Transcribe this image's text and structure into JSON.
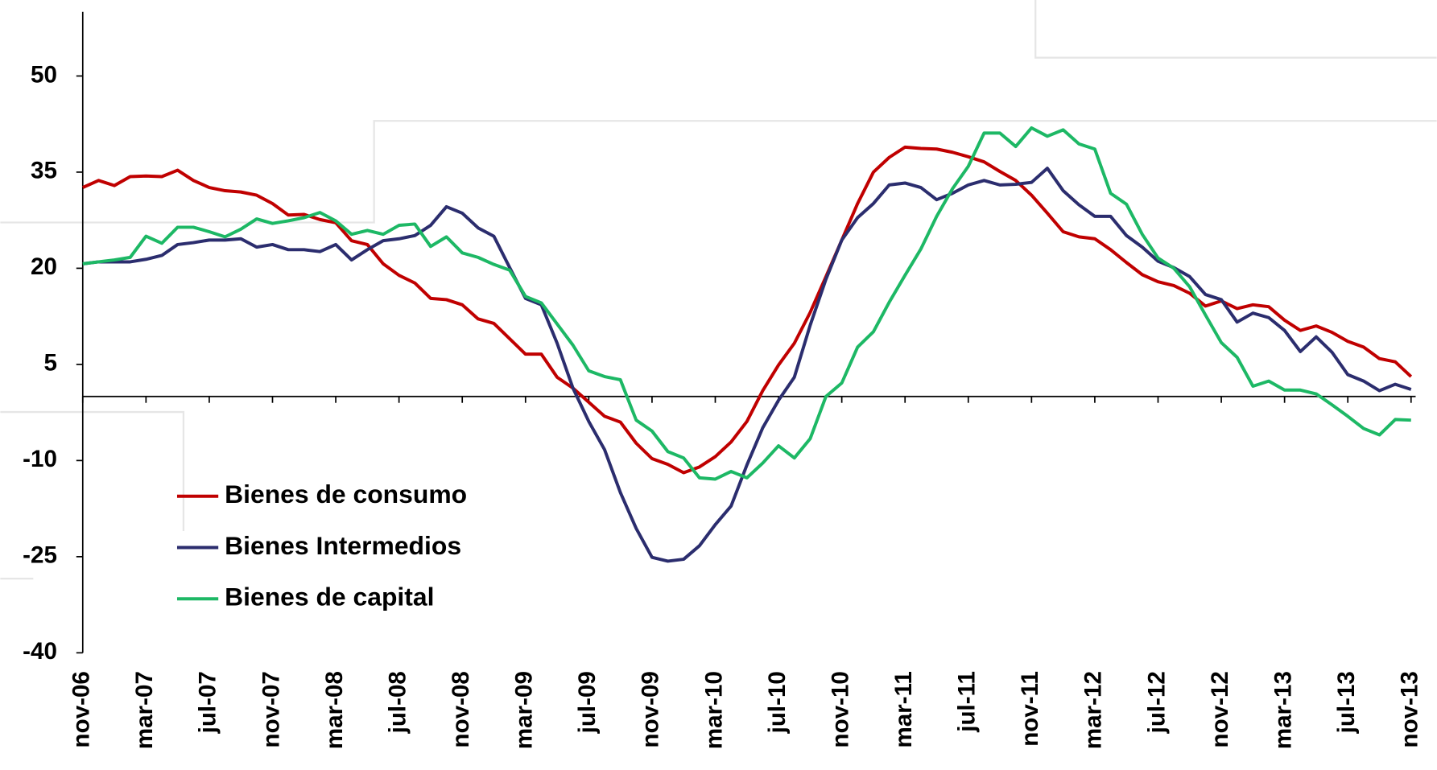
{
  "chart_data": {
    "type": "line",
    "categories": [
      "nov-06",
      null,
      null,
      null,
      "mar-07",
      null,
      null,
      null,
      "jul-07",
      null,
      null,
      null,
      "nov-07",
      null,
      null,
      null,
      "mar-08",
      null,
      null,
      null,
      "jul-08",
      null,
      null,
      null,
      "nov-08",
      null,
      null,
      null,
      "mar-09",
      null,
      null,
      null,
      "jul-09",
      null,
      null,
      null,
      "nov-09",
      null,
      null,
      null,
      "mar-10",
      null,
      null,
      null,
      "jul-10",
      null,
      null,
      null,
      "nov-10",
      null,
      null,
      null,
      "mar-11",
      null,
      null,
      null,
      "jul-11",
      null,
      null,
      null,
      "nov-11",
      null,
      null,
      null,
      "mar-12",
      null,
      null,
      null,
      "jul-12",
      null,
      null,
      null,
      "nov-12",
      null,
      null,
      null,
      "mar-13",
      null,
      null,
      null,
      "jul-13",
      null,
      null,
      null,
      "nov-13"
    ],
    "series": [
      {
        "name": "Bienes de consumo",
        "color": "#c00000",
        "values": [
          32.6,
          33.7,
          32.9,
          34.3,
          34.4,
          34.3,
          35.3,
          33.7,
          32.6,
          32.1,
          31.9,
          31.4,
          30.1,
          28.3,
          28.4,
          27.6,
          27.1,
          24.3,
          23.7,
          20.7,
          18.9,
          17.7,
          15.3,
          15.1,
          14.3,
          12.1,
          11.4,
          9.0,
          6.6,
          6.6,
          3.0,
          1.3,
          -0.9,
          -3.1,
          -4.0,
          -7.3,
          -9.7,
          -10.6,
          -11.9,
          -11.0,
          -9.4,
          -7.1,
          -3.9,
          0.9,
          4.9,
          8.3,
          13.1,
          18.7,
          24.4,
          30.1,
          35.0,
          37.3,
          38.9,
          38.7,
          38.6,
          38.1,
          37.4,
          36.6,
          35.1,
          33.7,
          31.4,
          28.6,
          25.7,
          24.9,
          24.6,
          22.9,
          20.9,
          19.0,
          17.9,
          17.3,
          16.1,
          14.1,
          14.9,
          13.7,
          14.3,
          14.0,
          11.9,
          10.3,
          11.0,
          10.0,
          8.6,
          7.7,
          5.9,
          5.4,
          3.1
        ]
      },
      {
        "name": "Bienes Intermedios",
        "color": "#2b2d6e",
        "values": [
          20.7,
          21.0,
          21.0,
          21.0,
          21.4,
          22.0,
          23.7,
          24.0,
          24.4,
          24.4,
          24.6,
          23.3,
          23.7,
          22.9,
          22.9,
          22.6,
          23.7,
          21.3,
          22.9,
          24.3,
          24.6,
          25.1,
          26.7,
          29.6,
          28.6,
          26.3,
          25.0,
          20.1,
          15.3,
          14.3,
          8.3,
          1.3,
          -3.9,
          -8.3,
          -15.0,
          -20.6,
          -25.1,
          -25.7,
          -25.4,
          -23.3,
          -20.0,
          -17.1,
          -10.7,
          -4.9,
          -0.6,
          3.0,
          11.1,
          18.3,
          24.4,
          27.9,
          30.1,
          33.0,
          33.3,
          32.6,
          30.7,
          31.7,
          33.0,
          33.7,
          33.0,
          33.1,
          33.4,
          35.6,
          32.1,
          29.9,
          28.1,
          28.1,
          25.1,
          23.3,
          21.1,
          20.1,
          18.7,
          15.9,
          15.1,
          11.6,
          13.0,
          12.3,
          10.3,
          7.0,
          9.3,
          6.9,
          3.4,
          2.4,
          0.9,
          1.9,
          1.1
        ]
      },
      {
        "name": "Bienes de capital",
        "color": "#1db865",
        "values": [
          20.7,
          21.0,
          21.3,
          21.7,
          25.0,
          23.9,
          26.4,
          26.4,
          25.7,
          24.9,
          26.1,
          27.7,
          27.0,
          27.4,
          27.9,
          28.7,
          27.4,
          25.3,
          25.9,
          25.3,
          26.7,
          26.9,
          23.4,
          24.9,
          22.4,
          21.7,
          20.6,
          19.7,
          15.6,
          14.6,
          11.3,
          8.0,
          4.0,
          3.1,
          2.6,
          -3.7,
          -5.4,
          -8.6,
          -9.6,
          -12.7,
          -12.9,
          -11.7,
          -12.7,
          -10.4,
          -7.7,
          -9.6,
          -6.6,
          0,
          2.1,
          7.7,
          10.1,
          14.7,
          18.9,
          23.0,
          28.1,
          32.4,
          35.9,
          41.1,
          41.1,
          39.0,
          41.9,
          40.6,
          41.6,
          39.4,
          38.6,
          31.7,
          30.0,
          25.3,
          21.6,
          20.0,
          17.1,
          12.7,
          8.4,
          6.1,
          1.6,
          2.4,
          1.0,
          1.0,
          0.4,
          -1.3,
          -3.1,
          -5.0,
          -6.0,
          -3.6,
          -3.7
        ]
      }
    ],
    "ylim": [
      -40,
      60
    ],
    "yticks": [
      50,
      35,
      20,
      5,
      -10,
      -25,
      -40
    ],
    "legend": "lower left"
  }
}
